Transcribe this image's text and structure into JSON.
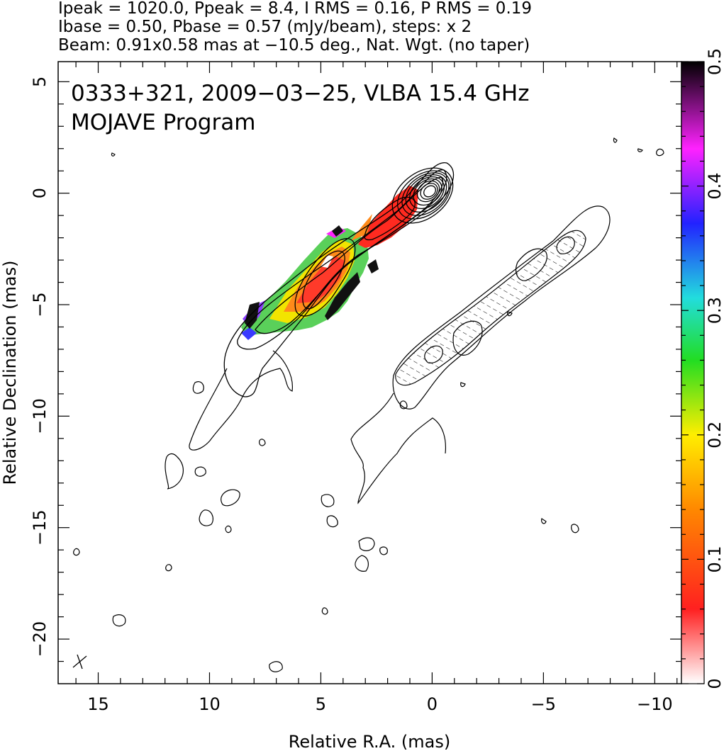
{
  "header": {
    "line1": "Ipeak = 1020.0, Ppeak = 8.4, I RMS = 0.16, P RMS = 0.19",
    "line2": "Ibase = 0.50, Pbase = 0.57 (mJy/beam), steps: x 2",
    "line3": "Beam: 0.91x0.58 mas at −10.5 deg., Nat. Wgt. (no taper)"
  },
  "chart_data": {
    "type": "contour",
    "title_line1": "0333+321, 2009−03−25, VLBA 15.4 GHz",
    "title_line2": "MOJAVE Program",
    "xlabel": "Relative R.A. (mas)",
    "ylabel": "Relative Declination (mas)",
    "xlim": [
      16.8,
      -11.2
    ],
    "ylim": [
      -22.0,
      5.9
    ],
    "xticks": [
      15,
      10,
      5,
      0,
      -5,
      -10
    ],
    "xtick_labels": [
      "15",
      "10",
      "5",
      "0",
      "−5",
      "−10"
    ],
    "yticks": [
      5,
      0,
      -5,
      -10,
      -15,
      -20
    ],
    "ytick_labels": [
      "5",
      "0",
      "−5",
      "−10",
      "−15",
      "−20"
    ],
    "colorbar": {
      "range": [
        0,
        0.5
      ],
      "ticks": [
        0,
        0.1,
        0.2,
        0.3,
        0.4,
        0.5
      ],
      "tick_labels": [
        "0",
        "0.1",
        "0.2",
        "0.3",
        "0.4",
        "0.5"
      ],
      "stops": [
        "#ffffff",
        "#ff2020",
        "#ff8800",
        "#ffee00",
        "#22dd22",
        "#22dddd",
        "#2222ff",
        "#ff22ff",
        "#000000"
      ]
    },
    "total_intensity_jet": {
      "core_position": [
        0,
        0
      ],
      "contour_levels_mJy": [
        0.5,
        1,
        2,
        4,
        8,
        16,
        32,
        64,
        128,
        256,
        512
      ]
    },
    "polarized_jet_offset_mas": [
      -3.5,
      -2.0
    ]
  }
}
